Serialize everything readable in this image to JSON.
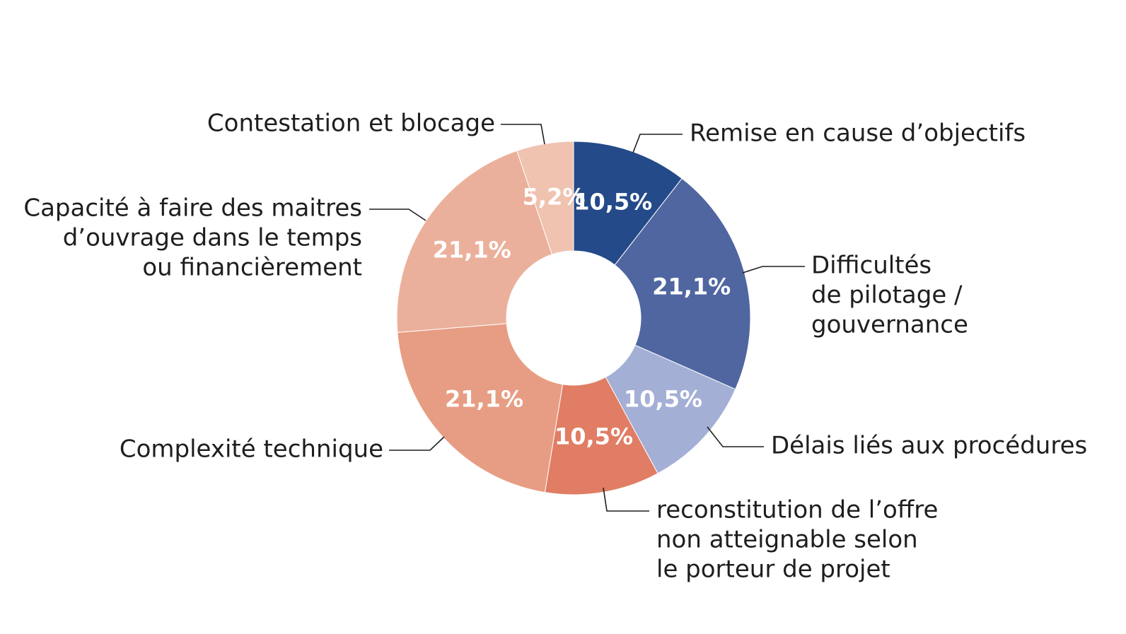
{
  "chart_data": {
    "type": "donut",
    "categories": [
      [
        "Remise en cause d’objectifs"
      ],
      [
        "Difficultés",
        "de pilotage /",
        "gouvernance"
      ],
      [
        "Délais liés aux procédures"
      ],
      [
        "reconstitution de l’offre",
        "non atteignable selon",
        "le porteur de projet"
      ],
      [
        "Complexité technique"
      ],
      [
        "Capacité à faire des maitres",
        "d’ouvrage dans le temps",
        "ou financièrement"
      ],
      [
        "Contestation et blocage"
      ]
    ],
    "values": [
      10.5,
      21.1,
      10.5,
      10.5,
      21.1,
      21.1,
      5.2
    ],
    "value_labels": [
      "10,5%",
      "21,1%",
      "10,5%",
      "10,5%",
      "21,1%",
      "21,1%",
      "5,2%"
    ],
    "colors": [
      "#244a89",
      "#4f66a0",
      "#a4afd6",
      "#e07d64",
      "#e79d83",
      "#ebb09b",
      "#f0c3b1"
    ]
  }
}
